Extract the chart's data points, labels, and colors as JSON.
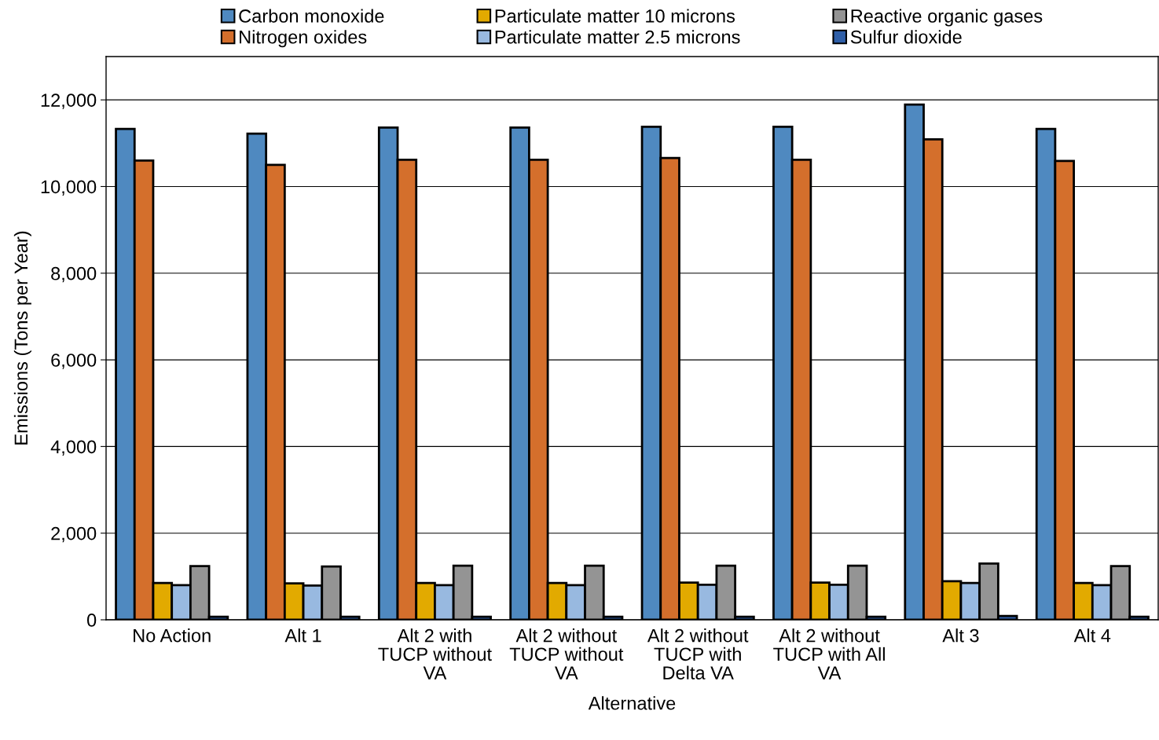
{
  "chart_data": {
    "type": "bar",
    "xlabel": "Alternative",
    "ylabel": "Emissions (Tons per Year)",
    "categories": [
      "No Action",
      "Alt 1",
      "Alt 2 with\nTUCP without\nVA",
      "Alt 2 without\nTUCP without\nVA",
      "Alt 2 without\nTUCP with\nDelta VA",
      "Alt 2 without\nTUCP with All\nVA",
      "Alt 3",
      "Alt 4"
    ],
    "series": [
      {
        "name": "Carbon monoxide",
        "color": "#4f89c0",
        "values": [
          11330,
          11220,
          11360,
          11360,
          11380,
          11380,
          11890,
          11330
        ]
      },
      {
        "name": "Nitrogen oxides",
        "color": "#d46f2c",
        "values": [
          10600,
          10500,
          10620,
          10620,
          10660,
          10620,
          11090,
          10590
        ]
      },
      {
        "name": "Particulate matter 10 microns",
        "color": "#e2aa00",
        "values": [
          850,
          840,
          850,
          850,
          860,
          860,
          890,
          850
        ]
      },
      {
        "name": "Particulate matter 2.5 microns",
        "color": "#98b9e0",
        "values": [
          800,
          790,
          800,
          800,
          810,
          810,
          850,
          800
        ]
      },
      {
        "name": "Reactive organic gases",
        "color": "#949494",
        "values": [
          1240,
          1230,
          1250,
          1250,
          1250,
          1250,
          1300,
          1240
        ]
      },
      {
        "name": "Sulfur dioxide",
        "color": "#2f5fa8",
        "values": [
          70,
          70,
          70,
          70,
          70,
          70,
          90,
          70
        ]
      }
    ],
    "ylim": [
      0,
      13000
    ],
    "yticks": [
      {
        "value": 0,
        "label": "0"
      },
      {
        "value": 2000,
        "label": "2,000"
      },
      {
        "value": 4000,
        "label": "4,000"
      },
      {
        "value": 6000,
        "label": "6,000"
      },
      {
        "value": 8000,
        "label": "8,000"
      },
      {
        "value": 10000,
        "label": "10,000"
      },
      {
        "value": 12000,
        "label": "12,000"
      }
    ],
    "grid": "y",
    "legend": "top"
  }
}
